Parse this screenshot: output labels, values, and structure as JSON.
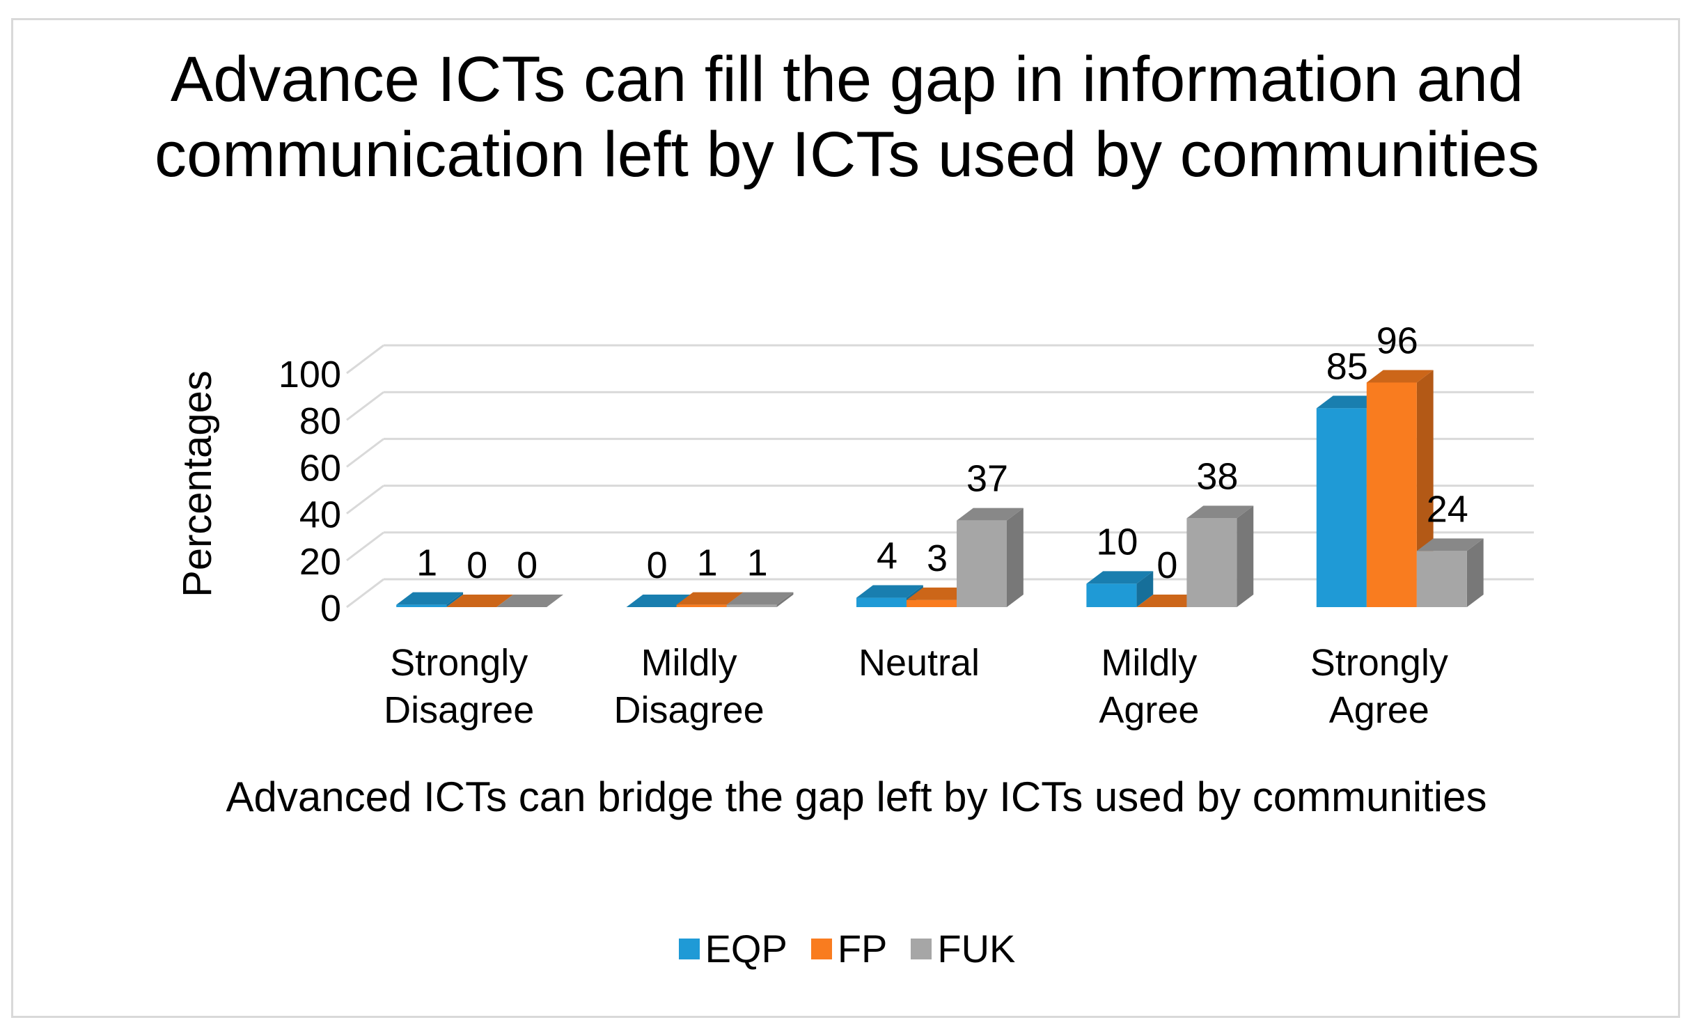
{
  "chart_data": {
    "type": "bar",
    "title": "Advance ICTs can fill the gap in information and communication left by ICTs used by communities",
    "xlabel": "Advanced ICTs can bridge the gap left by ICTs used by communities",
    "ylabel": "Percentages",
    "ylim": [
      0,
      100
    ],
    "yticks": [
      0,
      20,
      40,
      60,
      80,
      100
    ],
    "categories": [
      "Strongly Disagree",
      "Mildly Disagree",
      "Neutral",
      "Mildly Agree",
      "Strongly Agree"
    ],
    "series": [
      {
        "name": "EQP",
        "color": "#1f9ad6",
        "values": [
          1,
          0,
          4,
          10,
          85
        ]
      },
      {
        "name": "FP",
        "color": "#f97c1f",
        "values": [
          0,
          1,
          3,
          0,
          96
        ]
      },
      {
        "name": "FUK",
        "color": "#a6a6a6",
        "values": [
          0,
          1,
          37,
          38,
          24
        ]
      }
    ],
    "grid": true,
    "legend": "bottom",
    "style": "3d-clustered-column"
  }
}
